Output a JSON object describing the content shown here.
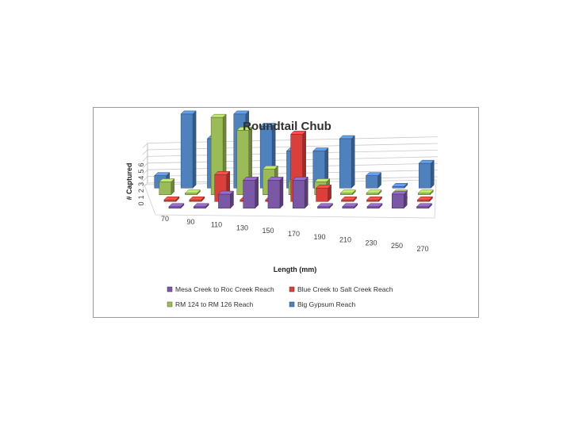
{
  "chart_data": {
    "type": "bar",
    "subtype": "3d-clustered-column",
    "title": "Roundtail Chub",
    "xlabel": "Length (mm)",
    "ylabel": "# Captured",
    "ytick_labels": [
      "0",
      "1",
      "2",
      "3",
      "4",
      "5",
      "6"
    ],
    "ylim": [
      0,
      6
    ],
    "categories": [
      "70",
      "90",
      "110",
      "130",
      "150",
      "170",
      "190",
      "210",
      "230",
      "250",
      "270"
    ],
    "legend_position": "bottom",
    "gridlines": true,
    "series": [
      {
        "name": "Mesa Creek to  Roc Creek Reach",
        "color": "#7b58a6",
        "values": [
          0,
          0,
          1,
          2,
          2,
          2,
          0,
          0,
          0,
          1,
          0
        ]
      },
      {
        "name": "Blue Creek to Salt Creek Reach",
        "color": "#d9403b",
        "values": [
          0,
          0,
          2,
          0,
          0,
          5,
          1,
          0,
          0,
          0,
          0
        ]
      },
      {
        "name": "RM 124 to RM 126 Reach",
        "color": "#9bbb59",
        "values": [
          1,
          0,
          6,
          5,
          2,
          1,
          1,
          0,
          0,
          0,
          0
        ]
      },
      {
        "name": "Big Gypsum Reach",
        "color": "#4f81bd",
        "values": [
          1,
          6,
          4,
          6,
          5,
          3,
          3,
          4,
          1,
          0,
          2
        ]
      }
    ]
  }
}
